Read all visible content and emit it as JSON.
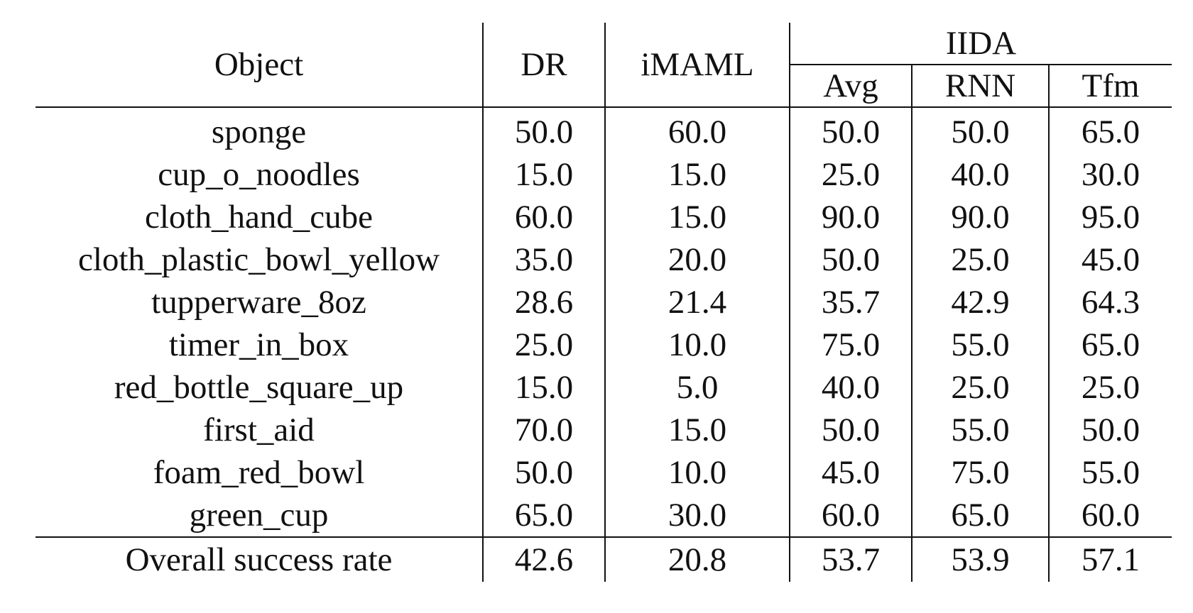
{
  "table": {
    "headers": {
      "object": "Object",
      "dr": "DR",
      "imaml": "iMAML",
      "iida": "IIDA",
      "avg": "Avg",
      "rnn": "RNN",
      "tfm": "Tfm"
    },
    "rows": [
      {
        "object": "sponge",
        "dr": "50.0",
        "imaml": "60.0",
        "avg": "50.0",
        "rnn": "50.0",
        "tfm": "65.0"
      },
      {
        "object": "cup_o_noodles",
        "dr": "15.0",
        "imaml": "15.0",
        "avg": "25.0",
        "rnn": "40.0",
        "tfm": "30.0"
      },
      {
        "object": "cloth_hand_cube",
        "dr": "60.0",
        "imaml": "15.0",
        "avg": "90.0",
        "rnn": "90.0",
        "tfm": "95.0"
      },
      {
        "object": "cloth_plastic_bowl_yellow",
        "dr": "35.0",
        "imaml": "20.0",
        "avg": "50.0",
        "rnn": "25.0",
        "tfm": "45.0"
      },
      {
        "object": "tupperware_8oz",
        "dr": "28.6",
        "imaml": "21.4",
        "avg": "35.7",
        "rnn": "42.9",
        "tfm": "64.3"
      },
      {
        "object": "timer_in_box",
        "dr": "25.0",
        "imaml": "10.0",
        "avg": "75.0",
        "rnn": "55.0",
        "tfm": "65.0"
      },
      {
        "object": "red_bottle_square_up",
        "dr": "15.0",
        "imaml": "5.0",
        "avg": "40.0",
        "rnn": "25.0",
        "tfm": "25.0"
      },
      {
        "object": "first_aid",
        "dr": "70.0",
        "imaml": "15.0",
        "avg": "50.0",
        "rnn": "55.0",
        "tfm": "50.0"
      },
      {
        "object": "foam_red_bowl",
        "dr": "50.0",
        "imaml": "10.0",
        "avg": "45.0",
        "rnn": "75.0",
        "tfm": "55.0"
      },
      {
        "object": "green_cup",
        "dr": "65.0",
        "imaml": "30.0",
        "avg": "60.0",
        "rnn": "65.0",
        "tfm": "60.0"
      }
    ],
    "overall": {
      "object": "Overall success rate",
      "dr": "42.6",
      "imaml": "20.8",
      "avg": "53.7",
      "rnn": "53.9",
      "tfm": "57.1"
    }
  }
}
